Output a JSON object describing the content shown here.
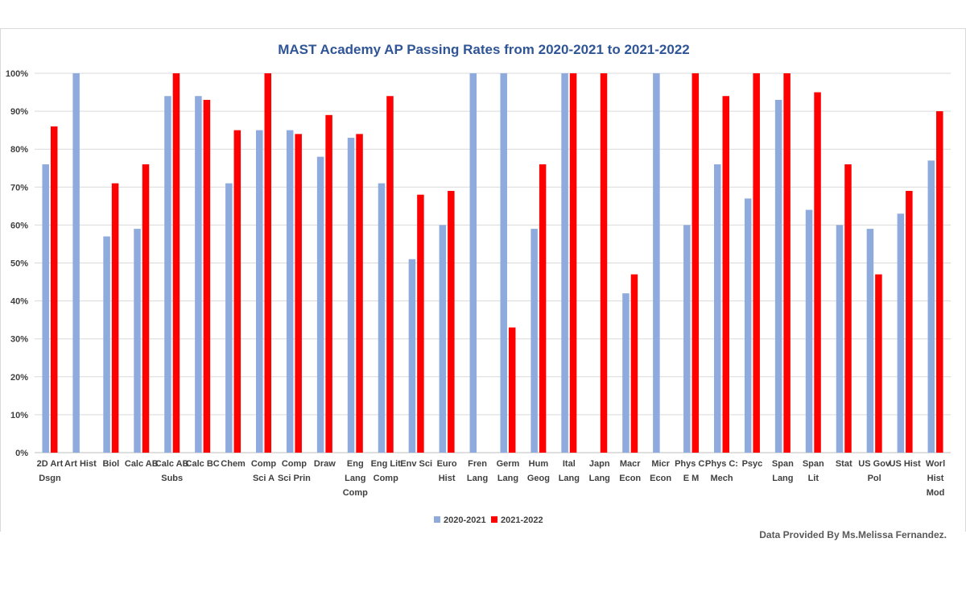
{
  "chart_data": {
    "type": "bar",
    "title": "MAST Academy AP Passing Rates from 2020-2021 to 2021-2022",
    "credit": "Data Provided By Ms.Melissa Fernandez.",
    "ylim": [
      0,
      100
    ],
    "yticks": [
      "0%",
      "10%",
      "20%",
      "30%",
      "40%",
      "50%",
      "60%",
      "70%",
      "80%",
      "90%",
      "100%"
    ],
    "grid": true,
    "legend_position": "bottom",
    "categories": [
      [
        "2D Art",
        "Dsgn"
      ],
      [
        "Art Hist"
      ],
      [
        "Biol"
      ],
      [
        "Calc AB"
      ],
      [
        "Calc AB",
        "Subs"
      ],
      [
        "Calc BC"
      ],
      [
        "Chem"
      ],
      [
        "Comp",
        "Sci A"
      ],
      [
        "Comp",
        "Sci Prin"
      ],
      [
        "Draw"
      ],
      [
        "Eng",
        "Lang",
        "Comp"
      ],
      [
        "Eng Lit",
        "Comp"
      ],
      [
        "Env Sci"
      ],
      [
        "Euro",
        "Hist"
      ],
      [
        "Fren",
        "Lang"
      ],
      [
        "Germ",
        "Lang"
      ],
      [
        "Hum",
        "Geog"
      ],
      [
        "Ital",
        "Lang"
      ],
      [
        "Japn",
        "Lang"
      ],
      [
        "Macr",
        "Econ"
      ],
      [
        "Micr",
        "Econ"
      ],
      [
        "Phys C:",
        "E M"
      ],
      [
        "Phys C:",
        "Mech"
      ],
      [
        "Psyc"
      ],
      [
        "Span",
        "Lang"
      ],
      [
        "Span",
        "Lit"
      ],
      [
        "Stat"
      ],
      [
        "US Gov",
        "Pol"
      ],
      [
        "US Hist"
      ],
      [
        "Worl",
        "Hist",
        "Mod"
      ]
    ],
    "series": [
      {
        "name": "2020-2021",
        "color": "#8faadc",
        "values": [
          76,
          100,
          57,
          59,
          94,
          94,
          71,
          85,
          85,
          78,
          83,
          71,
          51,
          60,
          100,
          100,
          59,
          100,
          null,
          42,
          100,
          60,
          76,
          67,
          93,
          64,
          60,
          59,
          63,
          77
        ]
      },
      {
        "name": "2021-2022",
        "color": "#ff0000",
        "values": [
          86,
          null,
          71,
          76,
          100,
          93,
          85,
          100,
          84,
          89,
          84,
          94,
          68,
          69,
          null,
          33,
          76,
          100,
          100,
          47,
          null,
          100,
          94,
          100,
          100,
          95,
          76,
          47,
          69,
          90
        ]
      }
    ]
  }
}
